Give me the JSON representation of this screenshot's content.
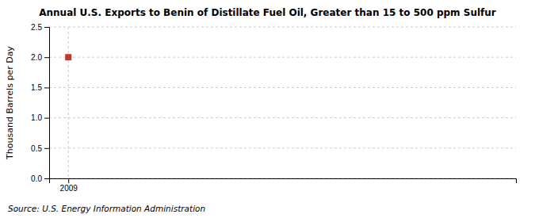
{
  "chart_data": {
    "type": "scatter",
    "title": "Annual U.S. Exports to Benin of Distillate Fuel Oil, Greater than 15 to 500 ppm Sulfur",
    "ylabel": "Thousand Barrels per Day",
    "source": "Source: U.S. Energy Information Administration",
    "x": [
      2009
    ],
    "values": [
      2.0
    ],
    "color": "#c0392b",
    "marker": "square",
    "xlim": [
      2008.7,
      2016.0
    ],
    "ylim": [
      0.0,
      2.5
    ],
    "xticks": [
      2009
    ],
    "yticks": [
      {
        "value": 0.0,
        "label": "0.0"
      },
      0.5,
      {
        "value": 1.0,
        "label": "1.0"
      },
      1.5,
      {
        "value": 2.0,
        "label": "2.0"
      },
      2.5
    ],
    "grid": true
  }
}
